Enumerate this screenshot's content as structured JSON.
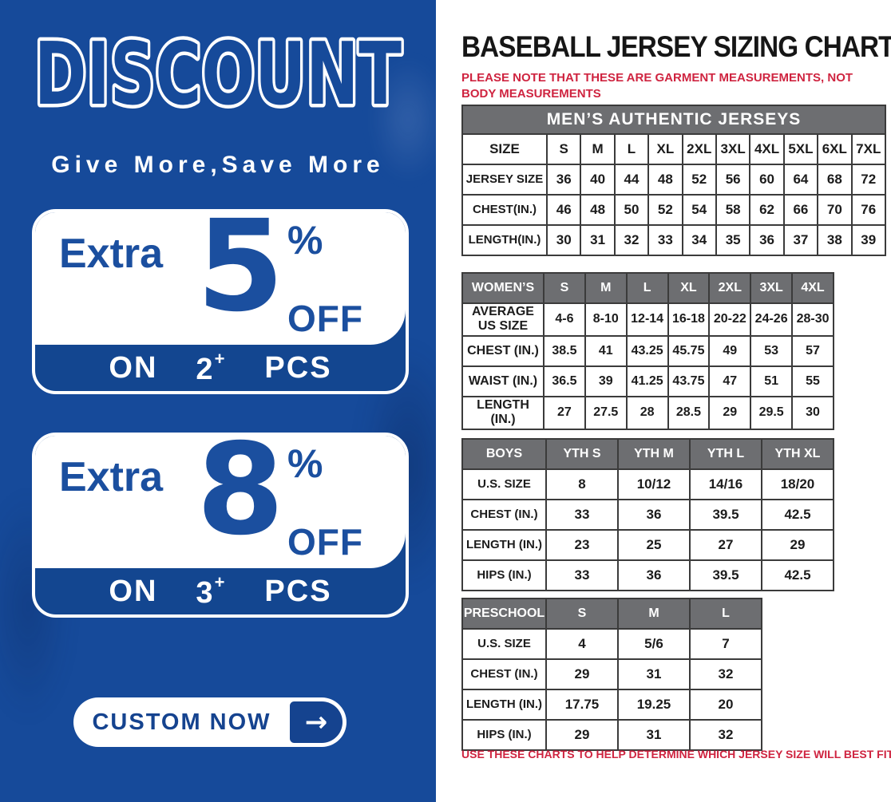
{
  "colors": {
    "panel_blue": "#164a9a",
    "accent_blue": "#1b4f9f",
    "header_gray": "#6d6e71",
    "note_red": "#cf2440"
  },
  "discount_panel": {
    "headline": "DISCOUNT",
    "subheadline": "Give More,Save More",
    "offers": [
      {
        "prefix": "Extra",
        "percent": "5",
        "percent_sign": "%",
        "off_label": "OFF",
        "on_label": "ON",
        "qty": "2",
        "plus": "+",
        "pcs_label": "PCS"
      },
      {
        "prefix": "Extra",
        "percent": "8",
        "percent_sign": "%",
        "off_label": "OFF",
        "on_label": "ON",
        "qty": "3",
        "plus": "+",
        "pcs_label": "PCS"
      }
    ],
    "cta": {
      "label": "CUSTOM NOW",
      "arrow": "→"
    }
  },
  "sizing": {
    "title": "BASEBALL JERSEY SIZING CHART",
    "note_top": "PLEASE NOTE THAT THESE ARE GARMENT MEASUREMENTS, NOT BODY MEASUREMENTS",
    "note_bottom": "USE THESE CHARTS TO HELP DETERMINE WHICH JERSEY SIZE WILL BEST FIT YOU.",
    "tables": [
      {
        "banner": "MEN’S AUTHENTIC JERSEYS",
        "header": [
          "SIZE",
          "S",
          "M",
          "L",
          "XL",
          "2XL",
          "3XL",
          "4XL",
          "5XL",
          "6XL",
          "7XL"
        ],
        "rows": [
          [
            "JERSEY SIZE",
            "36",
            "40",
            "44",
            "48",
            "52",
            "56",
            "60",
            "64",
            "68",
            "72"
          ],
          [
            "CHEST(IN.)",
            "46",
            "48",
            "50",
            "52",
            "54",
            "58",
            "62",
            "66",
            "70",
            "76"
          ],
          [
            "LENGTH(IN.)",
            "30",
            "31",
            "32",
            "33",
            "34",
            "35",
            "36",
            "37",
            "38",
            "39"
          ]
        ]
      },
      {
        "header": [
          "WOMEN’S",
          "S",
          "M",
          "L",
          "XL",
          "2XL",
          "3XL",
          "4XL"
        ],
        "rows": [
          [
            "AVERAGE US SIZE",
            "4-6",
            "8-10",
            "12-14",
            "16-18",
            "20-22",
            "24-26",
            "28-30"
          ],
          [
            "CHEST (IN.)",
            "38.5",
            "41",
            "43.25",
            "45.75",
            "49",
            "53",
            "57"
          ],
          [
            "WAIST (IN.)",
            "36.5",
            "39",
            "41.25",
            "43.75",
            "47",
            "51",
            "55"
          ],
          [
            "LENGTH (IN.)",
            "27",
            "27.5",
            "28",
            "28.5",
            "29",
            "29.5",
            "30"
          ]
        ]
      },
      {
        "header": [
          "BOYS",
          "YTH S",
          "YTH M",
          "YTH L",
          "YTH XL"
        ],
        "rows": [
          [
            "U.S. SIZE",
            "8",
            "10/12",
            "14/16",
            "18/20"
          ],
          [
            "CHEST (IN.)",
            "33",
            "36",
            "39.5",
            "42.5"
          ],
          [
            "LENGTH (IN.)",
            "23",
            "25",
            "27",
            "29"
          ],
          [
            "HIPS (IN.)",
            "33",
            "36",
            "39.5",
            "42.5"
          ]
        ]
      },
      {
        "header": [
          "PRESCHOOL",
          "S",
          "M",
          "L"
        ],
        "rows": [
          [
            "U.S. SIZE",
            "4",
            "5/6",
            "7"
          ],
          [
            "CHEST (IN.)",
            "29",
            "31",
            "32"
          ],
          [
            "LENGTH (IN.)",
            "17.75",
            "19.25",
            "20"
          ],
          [
            "HIPS (IN.)",
            "29",
            "31",
            "32"
          ]
        ]
      }
    ]
  }
}
